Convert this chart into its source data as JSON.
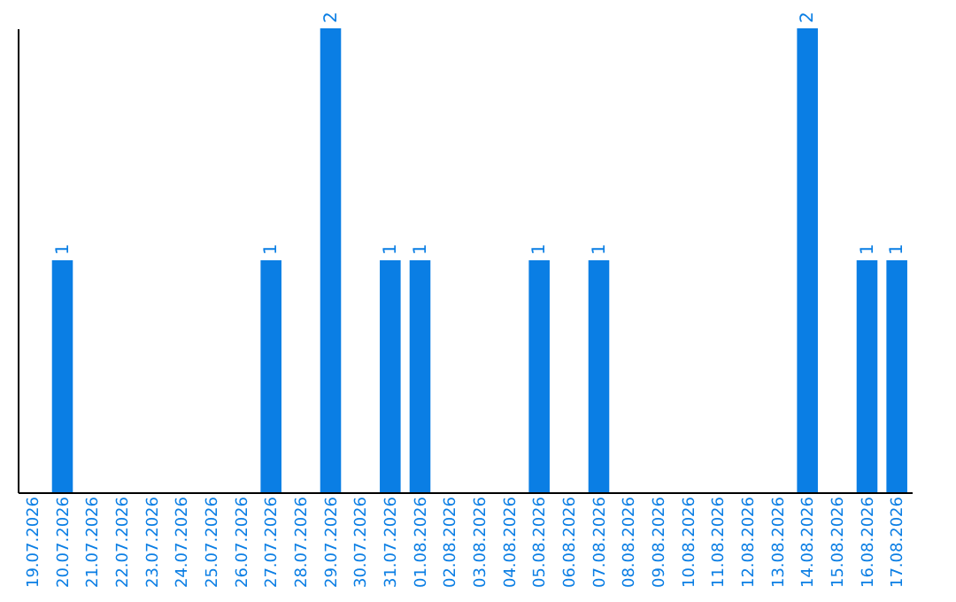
{
  "chart_data": {
    "type": "bar",
    "categories": [
      "19.07.2026",
      "20.07.2026",
      "21.07.2026",
      "22.07.2026",
      "23.07.2026",
      "24.07.2026",
      "25.07.2026",
      "26.07.2026",
      "27.07.2026",
      "28.07.2026",
      "29.07.2026",
      "30.07.2026",
      "31.07.2026",
      "01.08.2026",
      "02.08.2026",
      "03.08.2026",
      "04.08.2026",
      "05.08.2026",
      "06.08.2026",
      "07.08.2026",
      "08.08.2026",
      "09.08.2026",
      "10.08.2026",
      "11.08.2026",
      "12.08.2026",
      "13.08.2026",
      "14.08.2026",
      "15.08.2026",
      "16.08.2026",
      "17.08.2026"
    ],
    "values": [
      0,
      1,
      0,
      0,
      0,
      0,
      0,
      0,
      1,
      0,
      2,
      0,
      1,
      1,
      0,
      0,
      0,
      1,
      0,
      1,
      0,
      0,
      0,
      0,
      0,
      0,
      2,
      0,
      1,
      1
    ],
    "value_labels": [
      null,
      "1",
      null,
      null,
      null,
      null,
      null,
      null,
      "1",
      null,
      "2",
      null,
      "1",
      "1",
      null,
      null,
      null,
      "1",
      null,
      "1",
      null,
      null,
      null,
      null,
      null,
      null,
      "2",
      null,
      "1",
      "1"
    ],
    "color": "#0a7ee4",
    "ylim": [
      0,
      2
    ],
    "grid": false,
    "tick_labels": "x"
  }
}
